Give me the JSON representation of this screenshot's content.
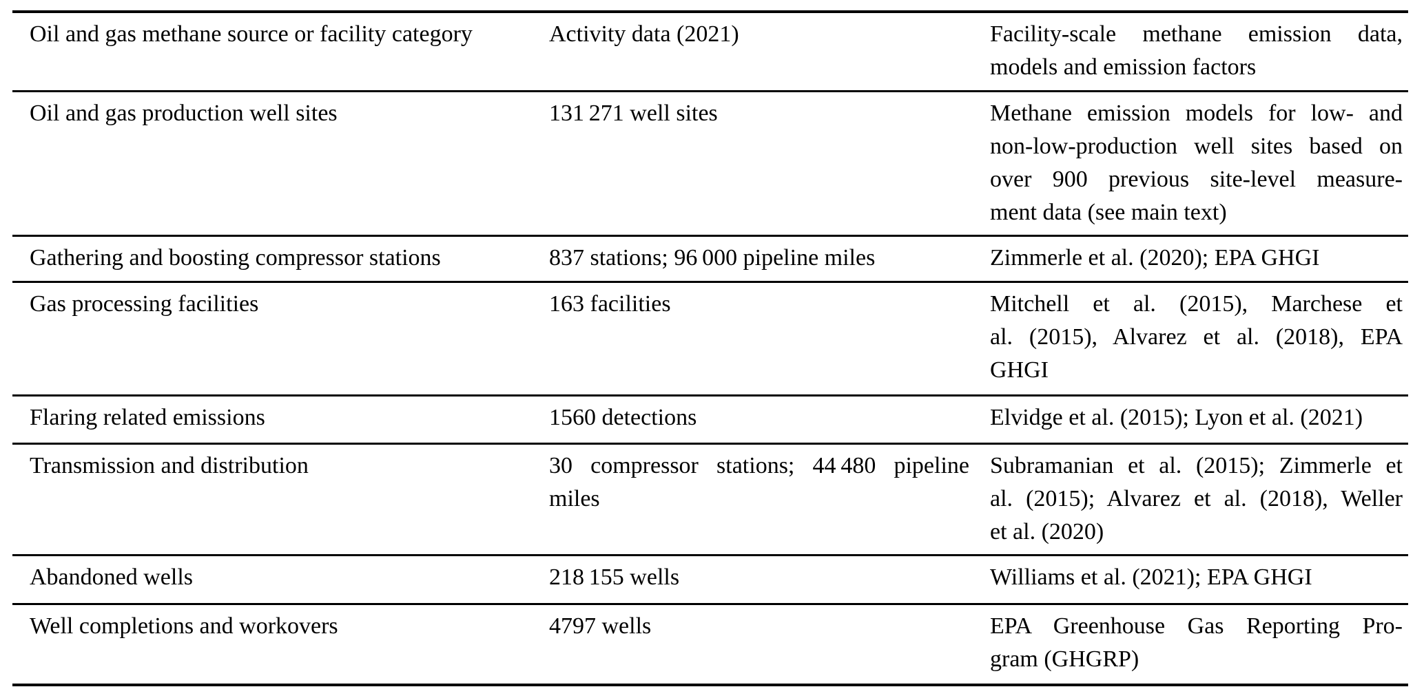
{
  "document": {
    "kind": "academic-paper-table",
    "background_color": "#ffffff",
    "text_color": "#000000",
    "rule_color": "#000000"
  },
  "table": {
    "header": [
      {
        "name": "source-category-column",
        "lines": [
          "Oil and gas methane source or facility category"
        ]
      },
      {
        "name": "activity-data-column",
        "lines": [
          "Activity data (2021)"
        ]
      },
      {
        "name": "emission-data-column",
        "lines": [
          "Facility-scale methane emission data,",
          "models and emission factors"
        ]
      }
    ],
    "rows": [
      {
        "category": {
          "lines": [
            "Oil and gas production well sites"
          ]
        },
        "activity": {
          "lines": [
            "131 271 well sites"
          ]
        },
        "sources": {
          "lines": [
            "Methane emission models for low- and",
            "non-low-production well sites based on",
            "over 900 previous site-level measure-",
            "ment data (see main text)"
          ]
        }
      },
      {
        "category": {
          "lines": [
            "Gathering and boosting compressor stations"
          ]
        },
        "activity": {
          "lines": [
            "837 stations; 96 000 pipeline miles"
          ]
        },
        "sources": {
          "lines": [
            "Zimmerle et al. (2020); EPA GHGI"
          ]
        }
      },
      {
        "category": {
          "lines": [
            "Gas processing facilities"
          ]
        },
        "activity": {
          "lines": [
            "163 facilities"
          ]
        },
        "sources": {
          "lines": [
            "Mitchell et al. (2015), Marchese et",
            "al. (2015), Alvarez et al. (2018), EPA",
            "GHGI"
          ]
        }
      },
      {
        "category": {
          "lines": [
            "Flaring related emissions"
          ]
        },
        "activity": {
          "lines": [
            "1560 detections"
          ]
        },
        "sources": {
          "lines": [
            "Elvidge et al. (2015); Lyon et al. (2021)"
          ]
        }
      },
      {
        "category": {
          "lines": [
            "Transmission and distribution"
          ]
        },
        "activity": {
          "lines": [
            "30 compressor stations; 44 480 pipeline",
            "miles"
          ]
        },
        "sources": {
          "lines": [
            "Subramanian et al. (2015); Zimmerle et",
            "al. (2015); Alvarez et al. (2018), Weller",
            "et al. (2020)"
          ]
        }
      },
      {
        "category": {
          "lines": [
            "Abandoned wells"
          ]
        },
        "activity": {
          "lines": [
            "218 155 wells"
          ]
        },
        "sources": {
          "lines": [
            "Williams et al. (2021); EPA GHGI"
          ]
        }
      },
      {
        "category": {
          "lines": [
            "Well completions and workovers"
          ]
        },
        "activity": {
          "lines": [
            "4797 wells"
          ]
        },
        "sources": {
          "lines": [
            "EPA Greenhouse Gas Reporting Pro-",
            "gram (GHGRP)"
          ]
        }
      }
    ]
  }
}
